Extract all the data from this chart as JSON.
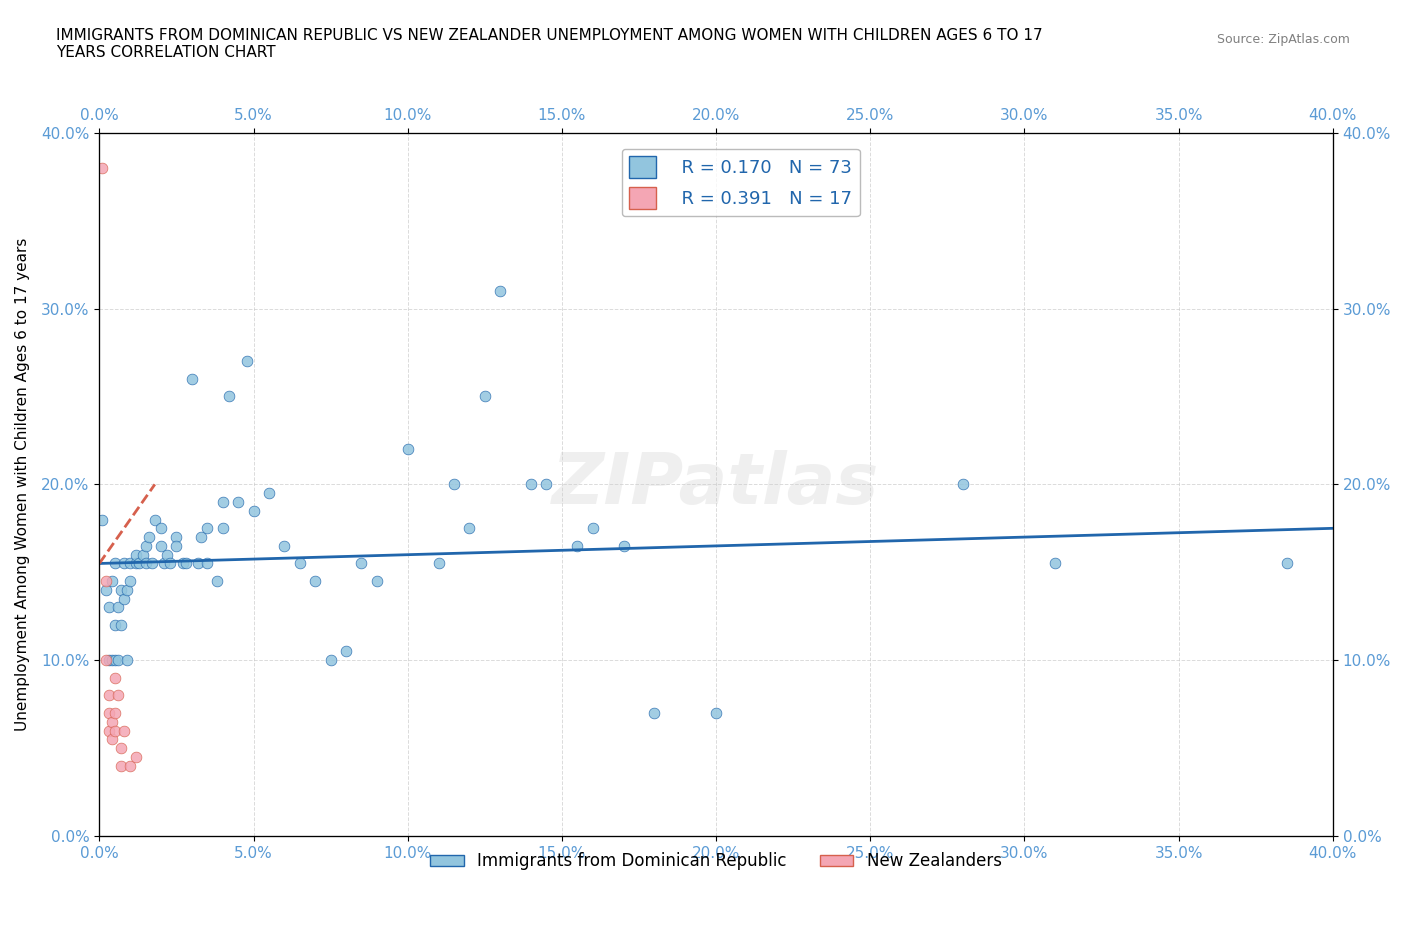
{
  "title": "IMMIGRANTS FROM DOMINICAN REPUBLIC VS NEW ZEALANDER UNEMPLOYMENT AMONG WOMEN WITH CHILDREN AGES 6 TO 17\nYEARS CORRELATION CHART",
  "source": "Source: ZipAtlas.com",
  "xlabel_ticks": [
    "0.0%",
    "5.0%",
    "10.0%",
    "15.0%",
    "20.0%",
    "25.0%",
    "30.0%",
    "35.0%",
    "40.0%"
  ],
  "ylabel_ticks": [
    "0.0%",
    "10.0%",
    "20.0%",
    "30.0%",
    "40.0%"
  ],
  "xlim": [
    0.0,
    0.4
  ],
  "ylim": [
    0.0,
    0.4
  ],
  "blue_scatter": [
    [
      0.001,
      0.18
    ],
    [
      0.002,
      0.14
    ],
    [
      0.003,
      0.1
    ],
    [
      0.003,
      0.13
    ],
    [
      0.004,
      0.1
    ],
    [
      0.004,
      0.145
    ],
    [
      0.005,
      0.12
    ],
    [
      0.005,
      0.155
    ],
    [
      0.005,
      0.1
    ],
    [
      0.006,
      0.13
    ],
    [
      0.006,
      0.1
    ],
    [
      0.007,
      0.12
    ],
    [
      0.007,
      0.14
    ],
    [
      0.008,
      0.135
    ],
    [
      0.008,
      0.155
    ],
    [
      0.009,
      0.14
    ],
    [
      0.009,
      0.1
    ],
    [
      0.01,
      0.155
    ],
    [
      0.01,
      0.145
    ],
    [
      0.012,
      0.155
    ],
    [
      0.012,
      0.16
    ],
    [
      0.013,
      0.155
    ],
    [
      0.014,
      0.16
    ],
    [
      0.015,
      0.165
    ],
    [
      0.015,
      0.155
    ],
    [
      0.016,
      0.17
    ],
    [
      0.017,
      0.155
    ],
    [
      0.018,
      0.18
    ],
    [
      0.02,
      0.175
    ],
    [
      0.02,
      0.165
    ],
    [
      0.021,
      0.155
    ],
    [
      0.022,
      0.16
    ],
    [
      0.023,
      0.155
    ],
    [
      0.025,
      0.17
    ],
    [
      0.025,
      0.165
    ],
    [
      0.027,
      0.155
    ],
    [
      0.028,
      0.155
    ],
    [
      0.03,
      0.26
    ],
    [
      0.032,
      0.155
    ],
    [
      0.033,
      0.17
    ],
    [
      0.035,
      0.175
    ],
    [
      0.035,
      0.155
    ],
    [
      0.038,
      0.145
    ],
    [
      0.04,
      0.19
    ],
    [
      0.04,
      0.175
    ],
    [
      0.042,
      0.25
    ],
    [
      0.045,
      0.19
    ],
    [
      0.048,
      0.27
    ],
    [
      0.05,
      0.185
    ],
    [
      0.055,
      0.195
    ],
    [
      0.06,
      0.165
    ],
    [
      0.065,
      0.155
    ],
    [
      0.07,
      0.145
    ],
    [
      0.075,
      0.1
    ],
    [
      0.08,
      0.105
    ],
    [
      0.085,
      0.155
    ],
    [
      0.09,
      0.145
    ],
    [
      0.1,
      0.22
    ],
    [
      0.11,
      0.155
    ],
    [
      0.115,
      0.2
    ],
    [
      0.12,
      0.175
    ],
    [
      0.125,
      0.25
    ],
    [
      0.13,
      0.31
    ],
    [
      0.14,
      0.2
    ],
    [
      0.145,
      0.2
    ],
    [
      0.155,
      0.165
    ],
    [
      0.16,
      0.175
    ],
    [
      0.17,
      0.165
    ],
    [
      0.18,
      0.07
    ],
    [
      0.2,
      0.07
    ],
    [
      0.28,
      0.2
    ],
    [
      0.31,
      0.155
    ],
    [
      0.385,
      0.155
    ]
  ],
  "pink_scatter": [
    [
      0.001,
      0.38
    ],
    [
      0.002,
      0.145
    ],
    [
      0.002,
      0.1
    ],
    [
      0.003,
      0.07
    ],
    [
      0.003,
      0.08
    ],
    [
      0.003,
      0.06
    ],
    [
      0.004,
      0.065
    ],
    [
      0.004,
      0.055
    ],
    [
      0.005,
      0.09
    ],
    [
      0.005,
      0.07
    ],
    [
      0.005,
      0.06
    ],
    [
      0.006,
      0.08
    ],
    [
      0.007,
      0.05
    ],
    [
      0.007,
      0.04
    ],
    [
      0.008,
      0.06
    ],
    [
      0.01,
      0.04
    ],
    [
      0.012,
      0.045
    ]
  ],
  "blue_line_x": [
    0.0,
    0.4
  ],
  "blue_line_y": [
    0.155,
    0.175
  ],
  "pink_line_x": [
    0.0,
    0.018
  ],
  "pink_line_y": [
    0.155,
    0.2
  ],
  "blue_color": "#92C5DE",
  "pink_color": "#F4A6B4",
  "blue_line_color": "#2166AC",
  "pink_line_color": "#D6604D",
  "R_blue": "0.170",
  "N_blue": "73",
  "R_pink": "0.391",
  "N_pink": "17",
  "legend_blue_label": "Immigrants from Dominican Republic",
  "legend_pink_label": "New Zealanders",
  "ylabel": "Unemployment Among Women with Children Ages 6 to 17 years",
  "grid_color": "#CCCCCC",
  "title_fontsize": 11,
  "axis_tick_color": "#5B9BD5",
  "watermark": "ZIPatlas"
}
